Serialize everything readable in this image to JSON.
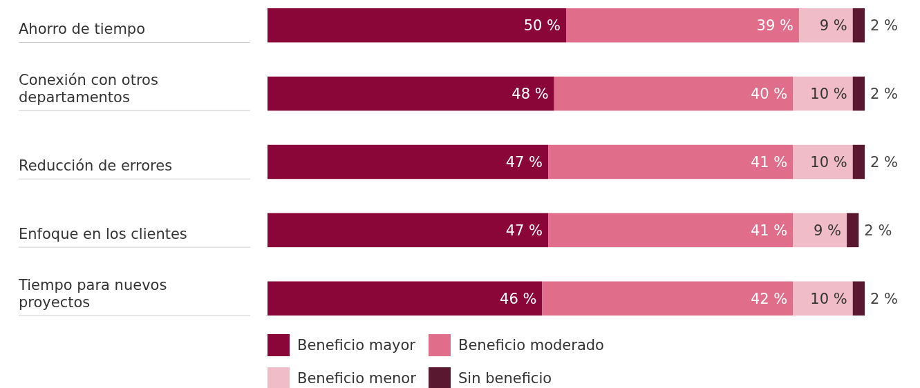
{
  "chart_data": {
    "type": "bar",
    "orientation": "horizontal",
    "stacked": true,
    "data_labels": true,
    "legend": "bottom",
    "categories": [
      "Ahorro de tiempo",
      "Conexión con otros departamentos",
      "Reducción de errores",
      "Enfoque en los clientes",
      "Tiempo para nuevos proyectos"
    ],
    "series": [
      {
        "name": "Beneficio mayor",
        "color": "#8a0538",
        "values": [
          50,
          48,
          47,
          47,
          46
        ],
        "value_labels": [
          "50 %",
          "48 %",
          "47 %",
          "47 %",
          "46 %"
        ]
      },
      {
        "name": "Beneficio moderado",
        "color": "#e06d8a",
        "values": [
          39,
          40,
          41,
          41,
          42
        ],
        "value_labels": [
          "39 %",
          "40 %",
          "41 %",
          "41 %",
          "42 %"
        ]
      },
      {
        "name": "Beneficio menor",
        "color": "#f0bcc8",
        "values": [
          9,
          10,
          10,
          9,
          10
        ],
        "value_labels": [
          "9 %",
          "10 %",
          "10 %",
          "9 %",
          "10 %"
        ]
      },
      {
        "name": "Sin beneficio",
        "color": "#5a1830",
        "values": [
          2,
          2,
          2,
          2,
          2
        ],
        "value_labels": [
          "2 %",
          "2 %",
          "2 %",
          "2 %",
          "2 %"
        ]
      }
    ]
  }
}
